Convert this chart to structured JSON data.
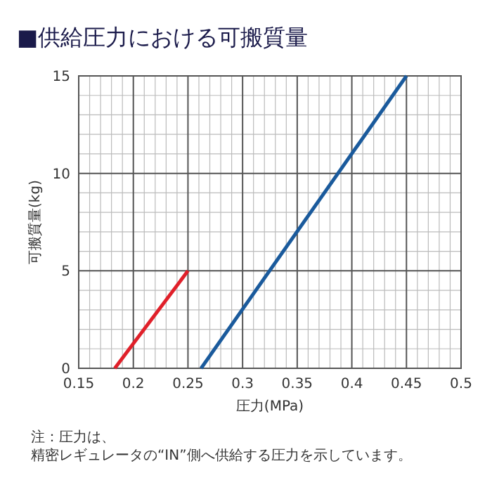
{
  "chart_data": {
    "type": "line",
    "title": "■供給圧力における可搬質量",
    "xlabel": "圧力(MPa)",
    "ylabel": "可搬質量(kg)",
    "annotations": [
      "注：圧力は、精密レギュレータの“IN”側へ供給する圧力を示しています。"
    ],
    "series": [
      {
        "color": "#e0202a",
        "x": [
          0.183,
          0.25
        ],
        "values": [
          0,
          5
        ]
      },
      {
        "color": "#1a5a9c",
        "x": [
          0.262,
          0.45
        ],
        "values": [
          0,
          15
        ]
      }
    ],
    "xlim": [
      0.15,
      0.5
    ],
    "xticks": [
      0.15,
      0.2,
      0.25,
      0.3,
      0.35,
      0.4,
      0.45,
      0.5
    ],
    "ylim": [
      0,
      15
    ],
    "yticks": [
      0,
      5,
      10,
      15
    ],
    "grid": true,
    "marker": "none",
    "line_style": "solid"
  }
}
